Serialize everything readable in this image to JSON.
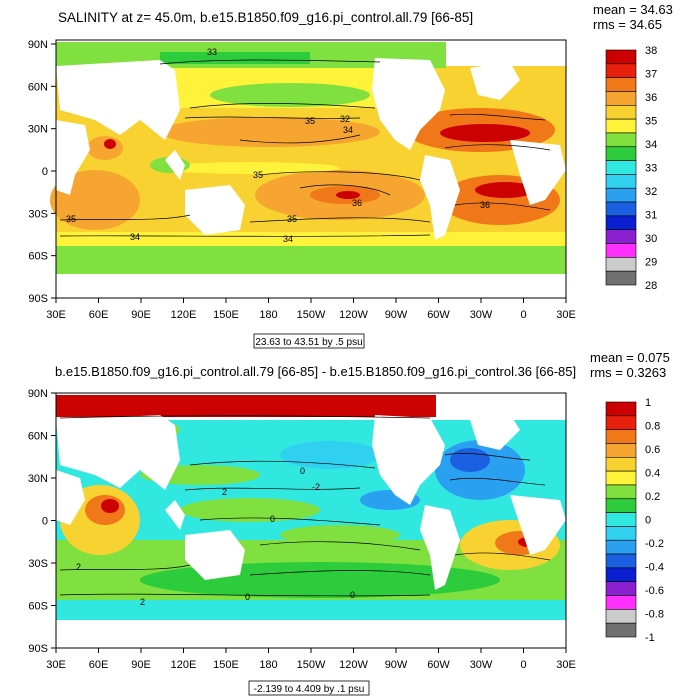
{
  "panel1": {
    "title": "SALINITY at z=  45.0m, b.e15.B1850.f09_g16.pi_control.all.79 [66-85]",
    "mean": "mean = 34.63",
    "rms": "rms = 34.65",
    "range_note": "23.63 to 43.51 by .5 psu",
    "contour_labels": [
      "33",
      "35",
      "32",
      "34",
      "35",
      "36",
      "35",
      "34",
      "34",
      "36",
      "35",
      "36",
      "35"
    ],
    "colorbar": {
      "levels": [
        "38",
        "37",
        "36",
        "35",
        "34",
        "33",
        "32",
        "31",
        "30",
        "29",
        "28"
      ],
      "colors": [
        "#cc0000",
        "#e8200c",
        "#f07818",
        "#f5a530",
        "#f7d230",
        "#fff23a",
        "#80e040",
        "#2ccc3c",
        "#30e8e0",
        "#30d0f0",
        "#2aa0f0",
        "#1a60e0",
        "#0a20d0",
        "#8a20d0",
        "#ff30ff",
        "#cccccc",
        "#707070"
      ]
    }
  },
  "panel2": {
    "title": "b.e15.B1850.f09_g16.pi_control.all.79 [66-85] - b.e15.B1850.f09_g16.pi_control.36 [66-85]",
    "mean": "mean = 0.075",
    "rms": "rms = 0.3263",
    "range_note": "-2.139 to 4.409 by .1 psu",
    "contour_labels": [
      "0",
      "2",
      "0",
      "0",
      "2",
      "2",
      "0",
      "-2",
      "-2",
      "0",
      "2",
      "0"
    ],
    "colorbar": {
      "levels": [
        "1",
        "0.8",
        "0.6",
        "0.4",
        "0.2",
        "0",
        "-0.2",
        "-0.4",
        "-0.6",
        "-0.8",
        "-1"
      ],
      "colors": [
        "#cc0000",
        "#e8200c",
        "#f07818",
        "#f5a530",
        "#f7d230",
        "#fff23a",
        "#80e040",
        "#2ccc3c",
        "#30e8e0",
        "#30d0f0",
        "#2aa0f0",
        "#1a60e0",
        "#0a20d0",
        "#8a20d0",
        "#ff30ff",
        "#cccccc",
        "#707070"
      ]
    }
  },
  "axes": {
    "lat_labels": [
      "90N",
      "60N",
      "30N",
      "0",
      "30S",
      "60S",
      "90S"
    ],
    "lon_labels": [
      "30E",
      "60E",
      "90E",
      "120E",
      "150E",
      "180",
      "150W",
      "120W",
      "90W",
      "60W",
      "30W",
      "0",
      "30E"
    ]
  }
}
